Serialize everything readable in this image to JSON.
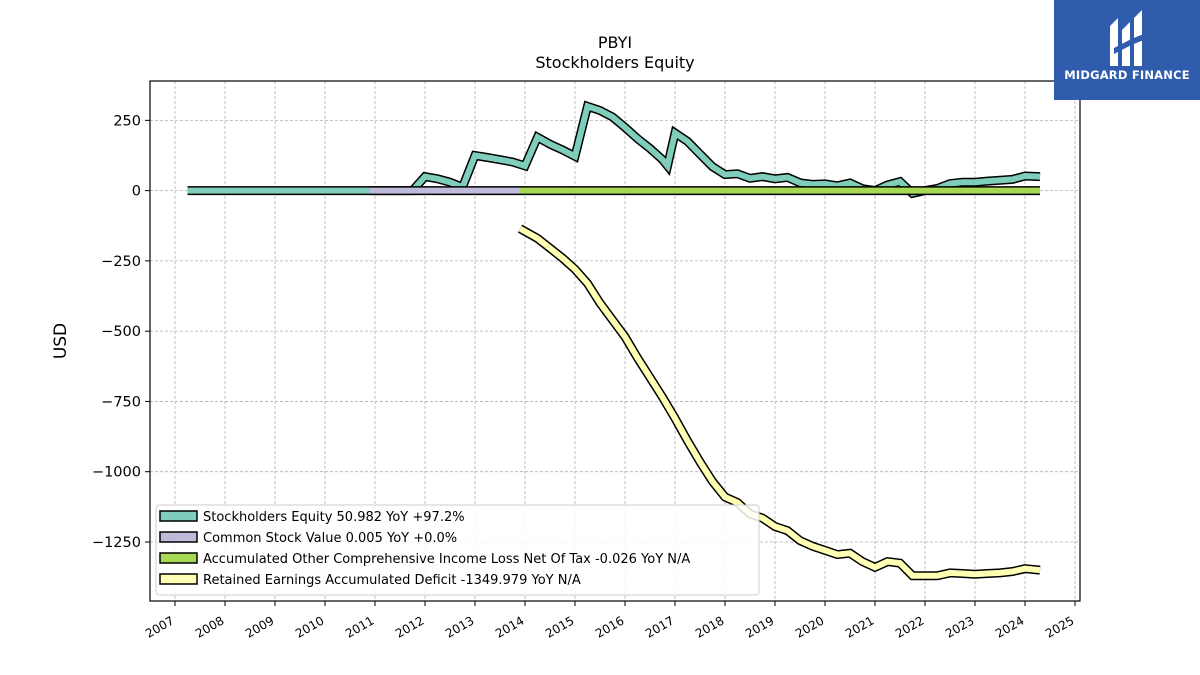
{
  "brand": {
    "name": "MIDGARD FINANCE",
    "color": "#2f5cad"
  },
  "chart_data": {
    "type": "line",
    "title": "PBYI",
    "subtitle": "Stockholders  Equity",
    "ylabel": "USD",
    "xlabel": "",
    "xlim": [
      2006.5,
      2025.1
    ],
    "ylim": [
      -1460,
      390
    ],
    "grid": true,
    "legend_position": "lower-left",
    "x_ticks": [
      "2007",
      "2008",
      "2009",
      "2010",
      "2011",
      "2012",
      "2013",
      "2014",
      "2015",
      "2016",
      "2017",
      "2018",
      "2019",
      "2020",
      "2021",
      "2022",
      "2023",
      "2024",
      "2025"
    ],
    "y_ticks": [
      250,
      0,
      -250,
      -500,
      -750,
      -1000,
      -1250
    ],
    "y_tick_labels": [
      "250",
      "0",
      "−250",
      "−500",
      "−750",
      "−1000",
      "−1250"
    ],
    "series": [
      {
        "name": "Stockholders Equity  50.982 YoY +97.2%",
        "color": "#7fcdbb",
        "points": [
          [
            2007.25,
            0
          ],
          [
            2010.9,
            0
          ],
          [
            2011.75,
            0
          ],
          [
            2012.0,
            50
          ],
          [
            2012.25,
            42
          ],
          [
            2012.5,
            30
          ],
          [
            2012.75,
            12
          ],
          [
            2013.0,
            125
          ],
          [
            2013.25,
            118
          ],
          [
            2013.5,
            110
          ],
          [
            2013.75,
            102
          ],
          [
            2014.0,
            88
          ],
          [
            2014.25,
            190
          ],
          [
            2014.5,
            165
          ],
          [
            2014.75,
            145
          ],
          [
            2015.0,
            122
          ],
          [
            2015.25,
            300
          ],
          [
            2015.5,
            285
          ],
          [
            2015.75,
            262
          ],
          [
            2016.0,
            225
          ],
          [
            2016.25,
            185
          ],
          [
            2016.5,
            150
          ],
          [
            2016.75,
            110
          ],
          [
            2016.85,
            88
          ],
          [
            2017.0,
            205
          ],
          [
            2017.25,
            175
          ],
          [
            2017.5,
            130
          ],
          [
            2017.75,
            85
          ],
          [
            2018.0,
            57
          ],
          [
            2018.25,
            60
          ],
          [
            2018.5,
            44
          ],
          [
            2018.75,
            50
          ],
          [
            2019.0,
            42
          ],
          [
            2019.25,
            47
          ],
          [
            2019.5,
            28
          ],
          [
            2019.75,
            22
          ],
          [
            2020.0,
            24
          ],
          [
            2020.25,
            17
          ],
          [
            2020.5,
            27
          ],
          [
            2020.75,
            7
          ],
          [
            2021.0,
            0
          ],
          [
            2021.25,
            20
          ],
          [
            2021.5,
            32
          ],
          [
            2021.75,
            -10
          ],
          [
            2022.0,
            0
          ],
          [
            2022.25,
            8
          ],
          [
            2022.5,
            25
          ],
          [
            2022.75,
            30
          ],
          [
            2023.0,
            30
          ],
          [
            2023.25,
            34
          ],
          [
            2023.5,
            37
          ],
          [
            2023.75,
            40
          ],
          [
            2024.0,
            52
          ],
          [
            2024.3,
            50
          ]
        ]
      },
      {
        "name": "Common Stock Value  0.005 YoY +0.0%",
        "color": "#bebada",
        "points": [
          [
            2010.9,
            0
          ],
          [
            2013.9,
            0
          ]
        ]
      },
      {
        "name": "Accumulated Other Comprehensive Income Loss Net Of Tax  -0.026 YoY N/A",
        "color": "#a6d854",
        "points": [
          [
            2013.9,
            0
          ],
          [
            2024.3,
            0
          ]
        ]
      },
      {
        "name": "Retained Earnings Accumulated Deficit  -1349.979 YoY N/A",
        "color": "#ffffb3",
        "points": [
          [
            2013.9,
            -135
          ],
          [
            2014.25,
            -170
          ],
          [
            2014.5,
            -205
          ],
          [
            2014.75,
            -240
          ],
          [
            2015.0,
            -280
          ],
          [
            2015.25,
            -330
          ],
          [
            2015.5,
            -400
          ],
          [
            2015.75,
            -460
          ],
          [
            2016.0,
            -520
          ],
          [
            2016.25,
            -595
          ],
          [
            2016.5,
            -665
          ],
          [
            2016.75,
            -735
          ],
          [
            2017.0,
            -810
          ],
          [
            2017.25,
            -890
          ],
          [
            2017.5,
            -965
          ],
          [
            2017.75,
            -1035
          ],
          [
            2018.0,
            -1090
          ],
          [
            2018.25,
            -1110
          ],
          [
            2018.5,
            -1150
          ],
          [
            2018.75,
            -1165
          ],
          [
            2019.0,
            -1195
          ],
          [
            2019.25,
            -1210
          ],
          [
            2019.5,
            -1245
          ],
          [
            2019.75,
            -1265
          ],
          [
            2020.0,
            -1280
          ],
          [
            2020.25,
            -1295
          ],
          [
            2020.5,
            -1290
          ],
          [
            2020.75,
            -1320
          ],
          [
            2021.0,
            -1340
          ],
          [
            2021.25,
            -1320
          ],
          [
            2021.5,
            -1325
          ],
          [
            2021.75,
            -1370
          ],
          [
            2022.0,
            -1370
          ],
          [
            2022.25,
            -1370
          ],
          [
            2022.5,
            -1360
          ],
          [
            2022.75,
            -1362
          ],
          [
            2023.0,
            -1365
          ],
          [
            2023.25,
            -1362
          ],
          [
            2023.5,
            -1360
          ],
          [
            2023.75,
            -1355
          ],
          [
            2024.0,
            -1345
          ],
          [
            2024.3,
            -1350
          ]
        ]
      }
    ]
  }
}
